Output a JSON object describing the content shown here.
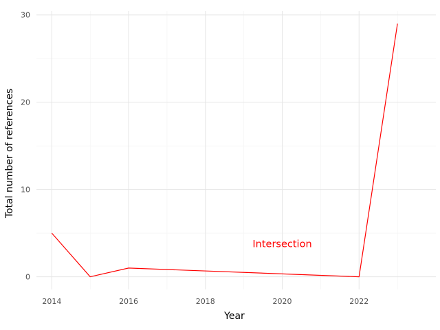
{
  "chart_data": {
    "type": "line",
    "x": [
      2014,
      2015,
      2016,
      2022,
      2023
    ],
    "series": [
      {
        "values": [
          5,
          0,
          1,
          0,
          29
        ],
        "color": "#ff0000"
      }
    ],
    "xlabel": "Year",
    "ylabel": "Total number of references",
    "xlim": [
      2013.6,
      2024.0
    ],
    "ylim": [
      -1.45,
      30.45
    ],
    "x_ticks": [
      2014,
      2016,
      2018,
      2020,
      2022
    ],
    "x_tick_labels": [
      "2014",
      "2016",
      "2018",
      "2020",
      "2022"
    ],
    "y_ticks": [
      0,
      10,
      20,
      30
    ],
    "y_tick_labels": [
      "0",
      "10",
      "20",
      "30"
    ],
    "x_minor_ticks": [
      2015,
      2017,
      2019,
      2021,
      2023
    ],
    "y_minor_ticks": [
      5,
      15,
      25
    ],
    "grid": true,
    "legend": "none",
    "annotations": [
      {
        "text": "Intersection",
        "x": 2020,
        "y": 3.8,
        "color": "#ff0000"
      }
    ]
  }
}
